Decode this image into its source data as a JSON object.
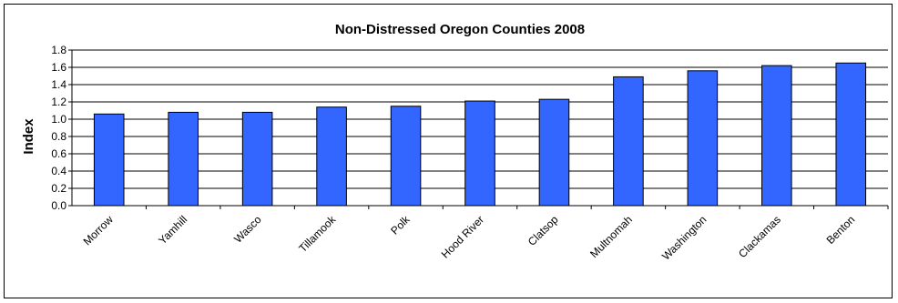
{
  "chart_data": {
    "type": "bar",
    "title": "Non-Distressed Oregon Counties 2008",
    "xlabel": "",
    "ylabel": "Index",
    "categories": [
      "Morrow",
      "Yamhill",
      "Wasco",
      "Tillamook",
      "Polk",
      "Hood River",
      "Clatsop",
      "Multnomah",
      "Washington",
      "Clackamas",
      "Benton"
    ],
    "values": [
      1.06,
      1.08,
      1.08,
      1.14,
      1.15,
      1.21,
      1.23,
      1.49,
      1.56,
      1.62,
      1.65
    ],
    "ylim": [
      0,
      1.8
    ],
    "yticks": [
      "0.0",
      "0.2",
      "0.4",
      "0.6",
      "0.8",
      "1.0",
      "1.2",
      "1.4",
      "1.6",
      "1.8"
    ],
    "grid": true,
    "bar_color": "#3366ff",
    "legend": "none"
  }
}
